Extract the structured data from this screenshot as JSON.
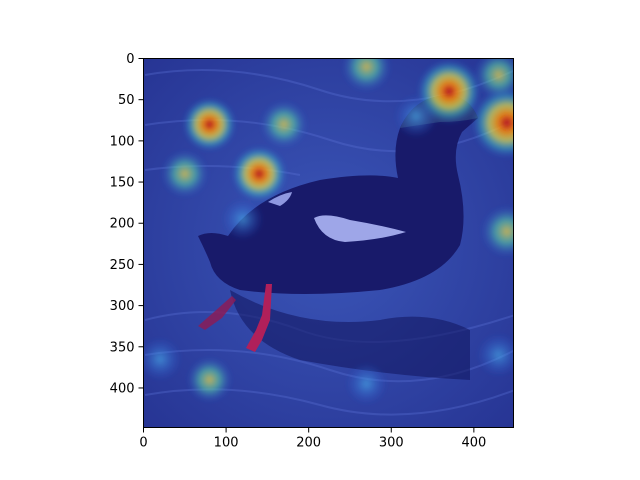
{
  "chart_data": {
    "type": "heatmap",
    "title": "",
    "xlabel": "",
    "ylabel": "",
    "xlim": [
      0,
      448
    ],
    "ylim": [
      448,
      0
    ],
    "xticks": [
      0,
      100,
      200,
      300,
      400
    ],
    "yticks": [
      0,
      50,
      100,
      150,
      200,
      250,
      300,
      350,
      400
    ],
    "grid": false,
    "colormap": "jet",
    "background_image": "photo of a dark duck (black guillemot) swimming on rippled blue water, red feet visible below the waterline",
    "hotspots": [
      {
        "x": 80,
        "y": 80,
        "intensity": 0.6
      },
      {
        "x": 140,
        "y": 140,
        "intensity": 0.65
      },
      {
        "x": 170,
        "y": 80,
        "intensity": 0.45
      },
      {
        "x": 50,
        "y": 140,
        "intensity": 0.45
      },
      {
        "x": 370,
        "y": 40,
        "intensity": 0.85
      },
      {
        "x": 440,
        "y": 78,
        "intensity": 1.0
      },
      {
        "x": 430,
        "y": 20,
        "intensity": 0.5
      },
      {
        "x": 270,
        "y": 10,
        "intensity": 0.5
      },
      {
        "x": 440,
        "y": 210,
        "intensity": 0.55
      },
      {
        "x": 330,
        "y": 70,
        "intensity": 0.35
      },
      {
        "x": 80,
        "y": 390,
        "intensity": 0.4
      },
      {
        "x": 20,
        "y": 365,
        "intensity": 0.35
      },
      {
        "x": 430,
        "y": 360,
        "intensity": 0.35
      },
      {
        "x": 270,
        "y": 395,
        "intensity": 0.3
      },
      {
        "x": 120,
        "y": 195,
        "intensity": 0.3
      }
    ]
  }
}
